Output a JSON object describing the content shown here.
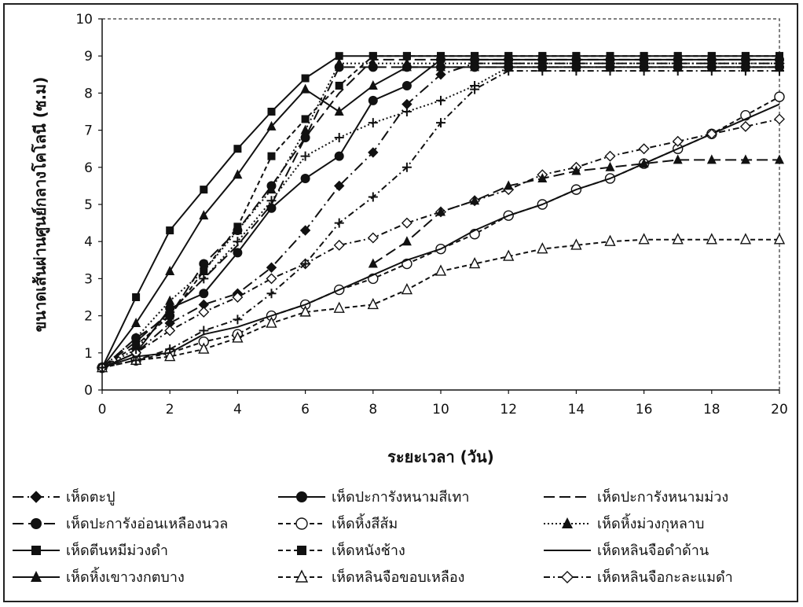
{
  "chart_data": {
    "type": "line",
    "title": "",
    "xlabel": "ระยะเวลา (วัน)",
    "ylabel": "ขนาดเส้นผ่านศูนย์กลางโคโลนี (ซ.ม)",
    "xlim": [
      0,
      20
    ],
    "ylim": [
      0,
      10
    ],
    "xticks": [
      0,
      2,
      4,
      6,
      8,
      10,
      12,
      14,
      16,
      18,
      20
    ],
    "yticks": [
      0,
      1,
      2,
      3,
      4,
      5,
      6,
      7,
      8,
      9,
      10
    ],
    "grid": false,
    "legend_position": "bottom",
    "x": [
      0,
      1,
      2,
      3,
      4,
      5,
      6,
      7,
      8,
      9,
      10,
      11,
      12,
      13,
      14,
      15,
      16,
      17,
      18,
      19,
      20
    ],
    "series": [
      {
        "name": "เห็ดตะปู",
        "marker": "diamond-filled",
        "dash": "long-dash-dot",
        "values": [
          0.6,
          1.0,
          1.8,
          2.3,
          2.6,
          3.3,
          4.3,
          5.5,
          6.4,
          7.7,
          8.5,
          8.8,
          8.8,
          8.8,
          8.8,
          8.8,
          8.8,
          8.8,
          8.8,
          8.8,
          8.8
        ]
      },
      {
        "name": "เห็ดปะการังหนามสีเทา",
        "marker": "circle-filled",
        "dash": "solid",
        "values": [
          0.6,
          1.0,
          2.2,
          2.6,
          3.7,
          4.9,
          5.7,
          6.3,
          7.8,
          8.2,
          8.9,
          8.9,
          8.9,
          8.9,
          8.9,
          8.9,
          8.9,
          8.9,
          8.9,
          8.9,
          8.9
        ]
      },
      {
        "name": "เห็ดปะการังหนามม่วง",
        "marker": "none",
        "dash": "long-dash",
        "values": [
          0.6,
          1.3,
          2.1,
          3.0,
          3.9,
          5.0,
          6.8,
          8.0,
          8.9,
          8.9,
          8.9,
          8.9,
          8.9,
          8.9,
          8.9,
          8.9,
          8.9,
          8.9,
          8.9,
          8.9,
          8.9
        ]
      },
      {
        "name": "เห็ดปะการังอ่อนเหลืองนวล",
        "marker": "circle-filled",
        "dash": "long-dash",
        "values": [
          0.6,
          1.4,
          2.0,
          3.4,
          4.3,
          5.5,
          6.8,
          8.7,
          8.7,
          8.7,
          8.7,
          8.7,
          8.7,
          8.7,
          8.7,
          8.7,
          8.7,
          8.7,
          8.7,
          8.7,
          8.7
        ]
      },
      {
        "name": "เห็ดหิ้งสีส้ม",
        "marker": "circle-open",
        "dash": "dash",
        "values": [
          0.6,
          0.8,
          1.0,
          1.3,
          1.5,
          2.0,
          2.3,
          2.7,
          3.0,
          3.4,
          3.8,
          4.2,
          4.7,
          5.0,
          5.4,
          5.7,
          6.1,
          6.5,
          6.9,
          7.4,
          7.9
        ]
      },
      {
        "name": "เห็ดหิ้งม่วงกุหลาบ",
        "marker": "triangle-filled",
        "dash": "dot",
        "values": [
          0.6,
          1.4,
          2.4,
          3.2,
          4.3,
          5.4,
          7.0,
          8.8,
          8.8,
          8.8,
          8.8,
          8.8,
          8.8,
          8.8,
          8.8,
          8.8,
          8.8,
          8.8,
          8.8,
          8.8,
          8.8
        ]
      },
      {
        "name": "เห็ดตีนหมีม่วงดำ",
        "marker": "square-filled",
        "dash": "solid",
        "values": [
          0.6,
          2.5,
          4.3,
          5.4,
          6.5,
          7.5,
          8.4,
          9.0,
          9.0,
          9.0,
          9.0,
          9.0,
          9.0,
          9.0,
          9.0,
          9.0,
          9.0,
          9.0,
          9.0,
          9.0,
          9.0
        ]
      },
      {
        "name": "เห็ดหนังช้าง",
        "marker": "square-filled",
        "dash": "dash",
        "values": [
          0.6,
          1.2,
          2.0,
          3.2,
          4.4,
          6.3,
          7.3,
          8.2,
          9.0,
          9.0,
          9.0,
          9.0,
          9.0,
          9.0,
          9.0,
          9.0,
          9.0,
          9.0,
          9.0,
          9.0,
          9.0
        ]
      },
      {
        "name": "เห็ดหลินจือดำด้าน",
        "marker": "none",
        "dash": "solid",
        "values": [
          0.6,
          0.9,
          1.0,
          1.5,
          1.7,
          2.0,
          2.3,
          2.7,
          3.1,
          3.5,
          3.8,
          4.3,
          4.7,
          5.0,
          5.4,
          5.7,
          6.1,
          6.5,
          6.9,
          7.3,
          7.7
        ]
      },
      {
        "name": "เห็ดหิ้งเขาวงกตบาง",
        "marker": "triangle-filled",
        "dash": "solid",
        "values": [
          0.6,
          1.8,
          3.2,
          4.7,
          5.8,
          7.1,
          8.1,
          7.5,
          8.2,
          8.7,
          8.7,
          8.7,
          8.7,
          8.7,
          8.7,
          8.7,
          8.7,
          8.7,
          8.7,
          8.7,
          8.7
        ]
      },
      {
        "name": "เห็ดหลินจือขอบเหลือง",
        "marker": "triangle-open",
        "dash": "dash",
        "values": [
          0.6,
          0.8,
          0.9,
          1.1,
          1.4,
          1.8,
          2.1,
          2.2,
          2.3,
          2.7,
          3.2,
          3.4,
          3.6,
          3.8,
          3.9,
          4.0,
          4.05,
          4.05,
          4.05,
          4.05,
          4.05
        ]
      },
      {
        "name": "เห็ดหลินจือกะละแมดำ",
        "marker": "diamond-open",
        "dash": "dash-dot",
        "values": [
          0.6,
          1.0,
          1.6,
          2.1,
          2.5,
          3.0,
          3.4,
          3.9,
          4.1,
          4.5,
          4.8,
          5.1,
          5.4,
          5.8,
          6.0,
          6.3,
          6.5,
          6.7,
          6.9,
          7.1,
          7.3
        ]
      },
      {
        "name": "",
        "marker": "triangle-filled",
        "dash": "long-dash",
        "values": [
          null,
          null,
          null,
          null,
          null,
          null,
          null,
          null,
          3.4,
          4.0,
          4.8,
          5.1,
          5.5,
          5.7,
          5.9,
          6.0,
          6.1,
          6.2,
          6.2,
          6.2,
          6.2
        ]
      },
      {
        "name": "",
        "marker": "plus",
        "dash": "dash-dot",
        "values": [
          0.6,
          0.8,
          1.1,
          1.6,
          1.9,
          2.6,
          3.4,
          4.5,
          5.2,
          6.0,
          7.2,
          8.1,
          8.6,
          8.6,
          8.6,
          8.6,
          8.6,
          8.6,
          8.6,
          8.6,
          8.6
        ]
      },
      {
        "name": "",
        "marker": "plus",
        "dash": "dot",
        "values": [
          0.6,
          1.1,
          2.1,
          3.0,
          4.0,
          5.1,
          6.3,
          6.8,
          7.2,
          7.5,
          7.8,
          8.2,
          8.7,
          8.7,
          8.7,
          8.7,
          8.7,
          8.7,
          8.7,
          8.7,
          8.7
        ]
      }
    ]
  }
}
